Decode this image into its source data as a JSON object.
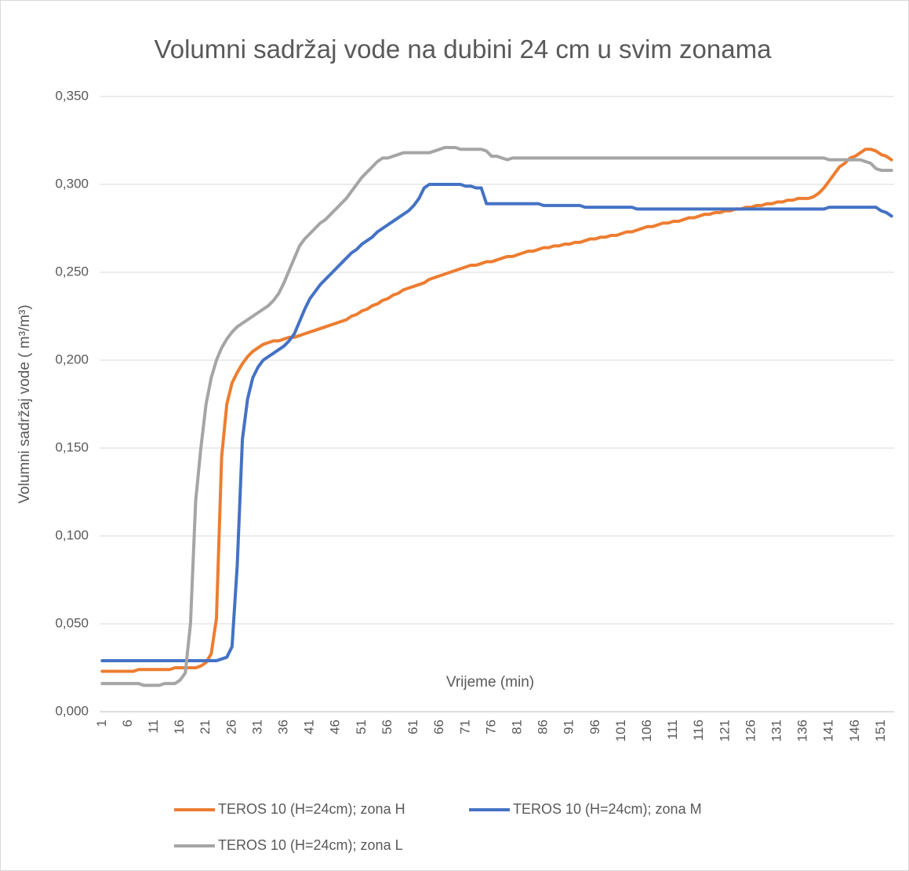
{
  "chart_data": {
    "type": "line",
    "title": "Volumni sadržaj vode na dubini 24 cm u svim zonama",
    "y_label": "Volumni sadržaj vode ( m³/m³)",
    "x_label": "Vrijeme (min)",
    "grid": true,
    "legend": "bottom",
    "ylim": [
      0,
      0.35
    ],
    "yticks": [
      {
        "value": 0,
        "label": "0,000"
      },
      {
        "value": 0.05,
        "label": "0,050"
      },
      {
        "value": 0.1,
        "label": "0,100"
      },
      {
        "value": 0.15,
        "label": "0,150"
      },
      {
        "value": 0.2,
        "label": "0,200"
      },
      {
        "value": 0.25,
        "label": "0,250"
      },
      {
        "value": 0.3,
        "label": "0,300"
      },
      {
        "value": 0.35,
        "label": "0,350"
      }
    ],
    "categories": [
      "1",
      null,
      null,
      null,
      null,
      "6",
      null,
      null,
      null,
      null,
      "11",
      null,
      null,
      null,
      null,
      "16",
      null,
      null,
      null,
      null,
      "21",
      null,
      null,
      null,
      null,
      "26",
      null,
      null,
      null,
      null,
      "31",
      null,
      null,
      null,
      null,
      "36",
      null,
      null,
      null,
      null,
      "41",
      null,
      null,
      null,
      null,
      "46",
      null,
      null,
      null,
      null,
      "51",
      null,
      null,
      null,
      null,
      "56",
      null,
      null,
      null,
      null,
      "61",
      null,
      null,
      null,
      null,
      "66",
      null,
      null,
      null,
      null,
      "71",
      null,
      null,
      null,
      null,
      "76",
      null,
      null,
      null,
      null,
      "81",
      null,
      null,
      null,
      null,
      "86",
      null,
      null,
      null,
      null,
      "91",
      null,
      null,
      null,
      null,
      "96",
      null,
      null,
      null,
      null,
      "101",
      null,
      null,
      null,
      null,
      "106",
      null,
      null,
      null,
      null,
      "111",
      null,
      null,
      null,
      null,
      "116",
      null,
      null,
      null,
      null,
      "121",
      null,
      null,
      null,
      null,
      "126",
      null,
      null,
      null,
      null,
      "131",
      null,
      null,
      null,
      null,
      "136",
      null,
      null,
      null,
      null,
      "141",
      null,
      null,
      null,
      null,
      "146",
      null,
      null,
      null,
      null,
      "151",
      null,
      null
    ],
    "series": [
      {
        "name": "TEROS 10 (H=24cm); zona H",
        "color": "#ED7D31",
        "values": [
          0.023,
          0.023,
          0.023,
          0.023,
          0.023,
          0.023,
          0.023,
          0.024,
          0.024,
          0.024,
          0.024,
          0.024,
          0.024,
          0.024,
          0.025,
          0.025,
          0.025,
          0.025,
          0.025,
          0.026,
          0.028,
          0.033,
          0.053,
          0.145,
          0.175,
          0.187,
          0.193,
          0.198,
          0.202,
          0.205,
          0.207,
          0.209,
          0.21,
          0.211,
          0.211,
          0.212,
          0.213,
          0.213,
          0.214,
          0.215,
          0.216,
          0.217,
          0.218,
          0.219,
          0.22,
          0.221,
          0.222,
          0.223,
          0.225,
          0.226,
          0.228,
          0.229,
          0.231,
          0.232,
          0.234,
          0.235,
          0.237,
          0.238,
          0.24,
          0.241,
          0.242,
          0.243,
          0.244,
          0.246,
          0.247,
          0.248,
          0.249,
          0.25,
          0.251,
          0.252,
          0.253,
          0.254,
          0.254,
          0.255,
          0.256,
          0.256,
          0.257,
          0.258,
          0.259,
          0.259,
          0.26,
          0.261,
          0.262,
          0.262,
          0.263,
          0.264,
          0.264,
          0.265,
          0.265,
          0.266,
          0.266,
          0.267,
          0.267,
          0.268,
          0.269,
          0.269,
          0.27,
          0.27,
          0.271,
          0.271,
          0.272,
          0.273,
          0.273,
          0.274,
          0.275,
          0.276,
          0.276,
          0.277,
          0.278,
          0.278,
          0.279,
          0.279,
          0.28,
          0.281,
          0.281,
          0.282,
          0.283,
          0.283,
          0.284,
          0.284,
          0.285,
          0.285,
          0.286,
          0.286,
          0.287,
          0.287,
          0.288,
          0.288,
          0.289,
          0.289,
          0.29,
          0.29,
          0.291,
          0.291,
          0.292,
          0.292,
          0.292,
          0.293,
          0.295,
          0.298,
          0.302,
          0.306,
          0.31,
          0.312,
          0.315,
          0.316,
          0.318,
          0.32,
          0.32,
          0.319,
          0.317,
          0.316,
          0.314
        ]
      },
      {
        "name": "TEROS 10 (H=24cm); zona M",
        "color": "#4472C4",
        "values": [
          0.029,
          0.029,
          0.029,
          0.029,
          0.029,
          0.029,
          0.029,
          0.029,
          0.029,
          0.029,
          0.029,
          0.029,
          0.029,
          0.029,
          0.029,
          0.029,
          0.029,
          0.029,
          0.029,
          0.029,
          0.029,
          0.029,
          0.029,
          0.03,
          0.031,
          0.037,
          0.083,
          0.155,
          0.178,
          0.19,
          0.196,
          0.2,
          0.202,
          0.204,
          0.206,
          0.208,
          0.211,
          0.215,
          0.222,
          0.229,
          0.235,
          0.239,
          0.243,
          0.246,
          0.249,
          0.252,
          0.255,
          0.258,
          0.261,
          0.263,
          0.266,
          0.268,
          0.27,
          0.273,
          0.275,
          0.277,
          0.279,
          0.281,
          0.283,
          0.285,
          0.288,
          0.292,
          0.298,
          0.3,
          0.3,
          0.3,
          0.3,
          0.3,
          0.3,
          0.3,
          0.299,
          0.299,
          0.298,
          0.298,
          0.289,
          0.289,
          0.289,
          0.289,
          0.289,
          0.289,
          0.289,
          0.289,
          0.289,
          0.289,
          0.289,
          0.288,
          0.288,
          0.288,
          0.288,
          0.288,
          0.288,
          0.288,
          0.288,
          0.287,
          0.287,
          0.287,
          0.287,
          0.287,
          0.287,
          0.287,
          0.287,
          0.287,
          0.287,
          0.286,
          0.286,
          0.286,
          0.286,
          0.286,
          0.286,
          0.286,
          0.286,
          0.286,
          0.286,
          0.286,
          0.286,
          0.286,
          0.286,
          0.286,
          0.286,
          0.286,
          0.286,
          0.286,
          0.286,
          0.286,
          0.286,
          0.286,
          0.286,
          0.286,
          0.286,
          0.286,
          0.286,
          0.286,
          0.286,
          0.286,
          0.286,
          0.286,
          0.286,
          0.286,
          0.286,
          0.286,
          0.287,
          0.287,
          0.287,
          0.287,
          0.287,
          0.287,
          0.287,
          0.287,
          0.287,
          0.287,
          0.285,
          0.284,
          0.282
        ]
      },
      {
        "name": "TEROS 10 (H=24cm); zona L",
        "color": "#A5A5A5",
        "values": [
          0.016,
          0.016,
          0.016,
          0.016,
          0.016,
          0.016,
          0.016,
          0.016,
          0.015,
          0.015,
          0.015,
          0.015,
          0.016,
          0.016,
          0.016,
          0.018,
          0.022,
          0.05,
          0.12,
          0.15,
          0.175,
          0.19,
          0.2,
          0.207,
          0.212,
          0.216,
          0.219,
          0.221,
          0.223,
          0.225,
          0.227,
          0.229,
          0.231,
          0.234,
          0.238,
          0.244,
          0.251,
          0.258,
          0.265,
          0.269,
          0.272,
          0.275,
          0.278,
          0.28,
          0.283,
          0.286,
          0.289,
          0.292,
          0.296,
          0.3,
          0.304,
          0.307,
          0.31,
          0.313,
          0.315,
          0.315,
          0.316,
          0.317,
          0.318,
          0.318,
          0.318,
          0.318,
          0.318,
          0.318,
          0.319,
          0.32,
          0.321,
          0.321,
          0.321,
          0.32,
          0.32,
          0.32,
          0.32,
          0.32,
          0.319,
          0.316,
          0.316,
          0.315,
          0.314,
          0.315,
          0.315,
          0.315,
          0.315,
          0.315,
          0.315,
          0.315,
          0.315,
          0.315,
          0.315,
          0.315,
          0.315,
          0.315,
          0.315,
          0.315,
          0.315,
          0.315,
          0.315,
          0.315,
          0.315,
          0.315,
          0.315,
          0.315,
          0.315,
          0.315,
          0.315,
          0.315,
          0.315,
          0.315,
          0.315,
          0.315,
          0.315,
          0.315,
          0.315,
          0.315,
          0.315,
          0.315,
          0.315,
          0.315,
          0.315,
          0.315,
          0.315,
          0.315,
          0.315,
          0.315,
          0.315,
          0.315,
          0.315,
          0.315,
          0.315,
          0.315,
          0.315,
          0.315,
          0.315,
          0.315,
          0.315,
          0.315,
          0.315,
          0.315,
          0.315,
          0.315,
          0.314,
          0.314,
          0.314,
          0.314,
          0.314,
          0.314,
          0.314,
          0.313,
          0.312,
          0.309,
          0.308,
          0.308,
          0.308
        ]
      }
    ]
  }
}
